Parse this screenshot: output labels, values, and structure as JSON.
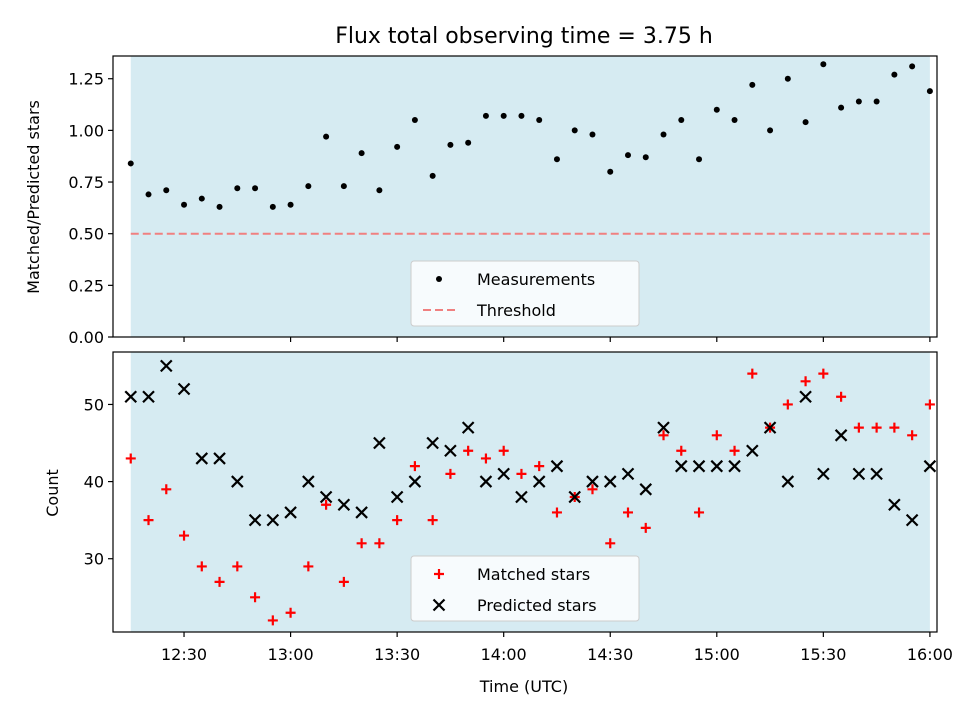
{
  "title": "Flux total observing time = 3.75 h",
  "chart_data": [
    {
      "type": "scatter",
      "ylabel": "Matched/Predicted stars",
      "xlabel": "",
      "xlim": [
        "12:10",
        "16:02"
      ],
      "ylim": [
        0,
        1.36
      ],
      "yticks": [
        "0.00",
        "0.25",
        "0.50",
        "0.75",
        "1.00",
        "1.25"
      ],
      "shaded_interval": [
        "12:15",
        "16:00"
      ],
      "shade_color": "#add8e6",
      "threshold": {
        "name": "Threshold",
        "value": 0.5,
        "color": "#f08080"
      },
      "series": [
        {
          "name": "Measurements",
          "color": "#000000",
          "x": [
            "12:15",
            "12:20",
            "12:25",
            "12:30",
            "12:35",
            "12:40",
            "12:45",
            "12:50",
            "12:55",
            "13:00",
            "13:05",
            "13:10",
            "13:15",
            "13:20",
            "13:25",
            "13:30",
            "13:35",
            "13:40",
            "13:45",
            "13:50",
            "13:55",
            "14:00",
            "14:05",
            "14:10",
            "14:15",
            "14:20",
            "14:25",
            "14:30",
            "14:35",
            "14:40",
            "14:45",
            "14:50",
            "14:55",
            "15:00",
            "15:05",
            "15:10",
            "15:15",
            "15:20",
            "15:25",
            "15:30",
            "15:35",
            "15:40",
            "15:45",
            "15:50",
            "15:55",
            "16:00"
          ],
          "y": [
            0.84,
            0.69,
            0.71,
            0.64,
            0.67,
            0.63,
            0.72,
            0.72,
            0.63,
            0.64,
            0.73,
            0.97,
            0.73,
            0.89,
            0.71,
            0.92,
            1.05,
            0.78,
            0.93,
            0.94,
            1.07,
            1.07,
            1.07,
            1.05,
            0.86,
            1.0,
            0.98,
            0.8,
            0.88,
            0.87,
            0.98,
            1.05,
            0.86,
            1.1,
            1.05,
            1.22,
            1.0,
            1.25,
            1.04,
            1.32,
            1.11,
            1.14,
            1.14,
            1.27,
            1.31,
            1.19
          ]
        }
      ],
      "legend": [
        "Measurements",
        "Threshold"
      ],
      "legend_position": "lower-center"
    },
    {
      "type": "scatter",
      "ylabel": "Count",
      "xlabel": "Time (UTC)",
      "xlim": [
        "12:10",
        "16:02"
      ],
      "ylim": [
        20.5,
        56.8
      ],
      "yticks": [
        "30",
        "40",
        "50"
      ],
      "xticks": [
        "12:30",
        "13:00",
        "13:30",
        "14:00",
        "14:30",
        "15:00",
        "15:30",
        "16:00"
      ],
      "shaded_interval": [
        "12:15",
        "16:00"
      ],
      "shade_color": "#add8e6",
      "series": [
        {
          "name": "Matched stars",
          "marker": "plus",
          "color": "#ff0000",
          "x": [
            "12:15",
            "12:20",
            "12:25",
            "12:30",
            "12:35",
            "12:40",
            "12:45",
            "12:50",
            "12:55",
            "13:00",
            "13:05",
            "13:10",
            "13:15",
            "13:20",
            "13:25",
            "13:30",
            "13:35",
            "13:40",
            "13:45",
            "13:50",
            "13:55",
            "14:00",
            "14:05",
            "14:10",
            "14:15",
            "14:20",
            "14:25",
            "14:30",
            "14:35",
            "14:40",
            "14:45",
            "14:50",
            "14:55",
            "15:00",
            "15:05",
            "15:10",
            "15:15",
            "15:20",
            "15:25",
            "15:30",
            "15:35",
            "15:40",
            "15:45",
            "15:50",
            "15:55",
            "16:00"
          ],
          "y": [
            43,
            35,
            39,
            33,
            29,
            27,
            29,
            25,
            22,
            23,
            29,
            37,
            27,
            32,
            32,
            35,
            42,
            35,
            41,
            44,
            43,
            44,
            41,
            42,
            36,
            38,
            39,
            32,
            36,
            34,
            46,
            44,
            36,
            46,
            44,
            54,
            47,
            50,
            53,
            54,
            51,
            47,
            47,
            47,
            46,
            50
          ]
        },
        {
          "name": "Predicted stars",
          "marker": "x",
          "color": "#000000",
          "x": [
            "12:15",
            "12:20",
            "12:25",
            "12:30",
            "12:35",
            "12:40",
            "12:45",
            "12:50",
            "12:55",
            "13:00",
            "13:05",
            "13:10",
            "13:15",
            "13:20",
            "13:25",
            "13:30",
            "13:35",
            "13:40",
            "13:45",
            "13:50",
            "13:55",
            "14:00",
            "14:05",
            "14:10",
            "14:15",
            "14:20",
            "14:25",
            "14:30",
            "14:35",
            "14:40",
            "14:45",
            "14:50",
            "14:55",
            "15:00",
            "15:05",
            "15:10",
            "15:15",
            "15:20",
            "15:25",
            "15:30",
            "15:35",
            "15:40",
            "15:45",
            "15:50",
            "15:55",
            "16:00"
          ],
          "y": [
            51,
            51,
            55,
            52,
            43,
            43,
            40,
            35,
            35,
            36,
            40,
            38,
            37,
            36,
            45,
            38,
            40,
            45,
            44,
            47,
            40,
            41,
            38,
            40,
            42,
            38,
            40,
            40,
            41,
            39,
            47,
            42,
            42,
            42,
            42,
            44,
            47,
            40,
            51,
            41,
            46,
            41,
            41,
            37,
            35,
            42
          ]
        }
      ],
      "legend": [
        "Matched stars",
        "Predicted stars"
      ],
      "legend_position": "lower-center"
    }
  ]
}
